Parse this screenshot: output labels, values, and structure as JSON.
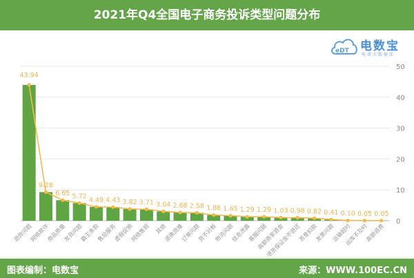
{
  "header": {
    "title": "2021年Q4全国电子商务投诉类型问题分布"
  },
  "logo": {
    "mark": "eDT",
    "brand": "电数宝",
    "tagline": "电商大数据库"
  },
  "footer": {
    "left": "图表编制：电数宝",
    "right": "来源：WWW.100EC.CN"
  },
  "colors": {
    "header_bg": "#63a548",
    "bar": "#5fa544",
    "line": "#f5b94a",
    "label": "#f0b44a",
    "grid": "#e8e8e8",
    "axis_text": "#888888"
  },
  "chart_data": {
    "type": "bar",
    "title": "2021年Q4全国电子商务投诉类型问题分布",
    "xlabel": "",
    "ylabel": "",
    "ylim": [
      0,
      50
    ],
    "yticks": [
      0,
      10,
      20,
      30,
      40,
      50
    ],
    "y_axis_position": "right",
    "grid": true,
    "legend": "none",
    "overlay": "line (same values, orange markers)",
    "categories": [
      "退款问题",
      "网络欺诈",
      "商品质量",
      "发货问题",
      "霸王条款",
      "售后服务",
      "虚假促销",
      "网络售假",
      "其他",
      "退换货难",
      "订单问题",
      "货不对板",
      "物流问题",
      "信息泄露",
      "客服问题",
      "高额商家退金",
      "退货保证金不退还",
      "恶意扣款",
      "发票问题",
      "运输超时",
      "出库不及时",
      "高额退费"
    ],
    "values": [
      43.94,
      9.28,
      6.65,
      5.72,
      4.49,
      4.43,
      3.82,
      3.71,
      3.04,
      2.68,
      2.58,
      1.86,
      1.65,
      1.29,
      1.29,
      1.03,
      0.98,
      0.82,
      0.41,
      0.1,
      0.05,
      0.05
    ],
    "labels": [
      "43.94",
      "9.28",
      "6.65",
      "5.72",
      "4.49",
      "4.43",
      "3.82",
      "3.71",
      "3.04",
      "2.68",
      "2.58",
      "1.86",
      "1.65",
      "1.29",
      "1.29",
      "1.03",
      "0.98",
      "0.82",
      "0.41",
      "0.10",
      "0.05",
      "0.05"
    ]
  }
}
